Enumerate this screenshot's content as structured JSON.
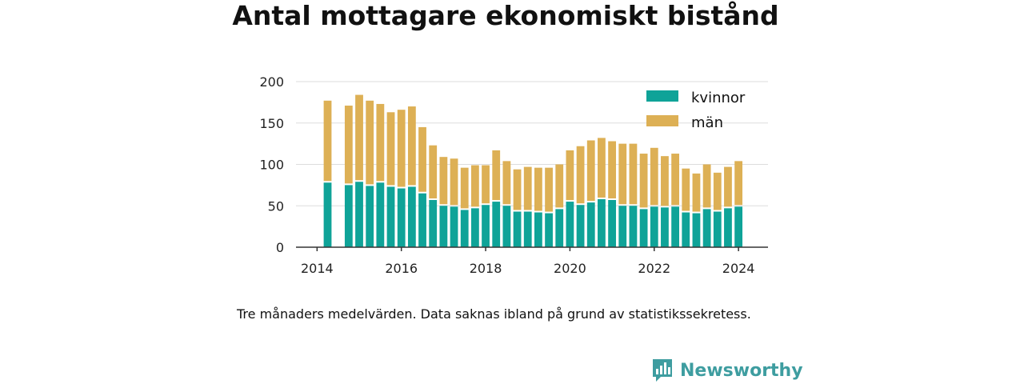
{
  "title": "Antal mottagare ekonomiskt bistånd",
  "note": "Tre månaders medelvärden. Data saknas ibland på grund av statistikssekretess.",
  "brand": {
    "name": "Newsworthy"
  },
  "colors": {
    "kvinnor": "#0fa398",
    "man": "#ddb055",
    "grid": "#dddddd",
    "axis": "#333333"
  },
  "chart_data": {
    "type": "bar",
    "stacked": true,
    "xlim": [
      2013.5,
      2024.7
    ],
    "ylim": [
      0,
      200
    ],
    "yticks": [
      0,
      50,
      100,
      150,
      200
    ],
    "xticks": [
      2014,
      2016,
      2018,
      2020,
      2022,
      2024
    ],
    "grid": true,
    "legend_position": "top-right",
    "x": [
      2014.25,
      2014.75,
      2015.0,
      2015.25,
      2015.5,
      2015.75,
      2016.0,
      2016.25,
      2016.5,
      2016.75,
      2017.0,
      2017.25,
      2017.5,
      2017.75,
      2018.0,
      2018.25,
      2018.5,
      2018.75,
      2019.0,
      2019.25,
      2019.5,
      2019.75,
      2020.0,
      2020.25,
      2020.5,
      2020.75,
      2021.0,
      2021.25,
      2021.5,
      2021.75,
      2022.0,
      2022.25,
      2022.5,
      2022.75,
      2023.0,
      2023.25,
      2023.5,
      2023.75,
      2024.0
    ],
    "series": [
      {
        "name": "kvinnor",
        "values": [
          78,
          75,
          79,
          74,
          78,
          73,
          71,
          73,
          65,
          57,
          50,
          49,
          45,
          47,
          51,
          55,
          50,
          43,
          43,
          42,
          41,
          46,
          55,
          51,
          54,
          58,
          57,
          50,
          50,
          46,
          49,
          48,
          49,
          42,
          41,
          46,
          43,
          47,
          49
        ]
      },
      {
        "name": "män",
        "values": [
          99,
          96,
          105,
          103,
          95,
          90,
          95,
          97,
          80,
          66,
          59,
          58,
          51,
          52,
          48,
          62,
          54,
          51,
          54,
          54,
          55,
          54,
          62,
          71,
          75,
          74,
          71,
          75,
          75,
          67,
          71,
          62,
          64,
          53,
          48,
          54,
          47,
          50,
          55
        ]
      }
    ]
  }
}
